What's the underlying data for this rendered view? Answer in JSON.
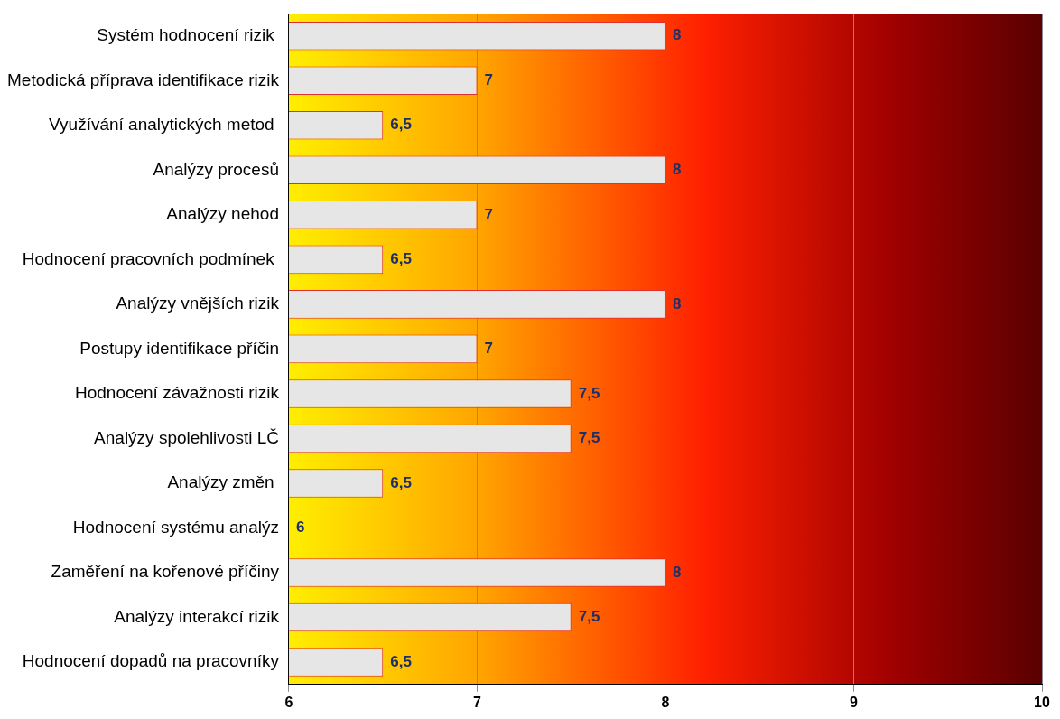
{
  "chart_data": {
    "type": "bar",
    "orientation": "horizontal",
    "categories": [
      "Systém hodnocení rizik ",
      "Metodická příprava identifikace rizik",
      "Využívání analytických metod ",
      "Analýzy procesů",
      "Analýzy nehod",
      "Hodnocení pracovních podmínek ",
      "Analýzy vnějších rizik",
      "Postupy identifikace příčin",
      "Hodnocení závažnosti rizik",
      "Analýzy spolehlivosti LČ",
      "Analýzy změn ",
      "Hodnocení systému analýz",
      "Zaměření na kořenové příčiny",
      "Analýzy interakcí rizik",
      "Hodnocení dopadů na pracovníky"
    ],
    "values": [
      8,
      7,
      6.5,
      8,
      7,
      6.5,
      8,
      7,
      7.5,
      7.5,
      6.5,
      6,
      8,
      7.5,
      6.5
    ],
    "value_labels": [
      "8",
      "7",
      "6,5",
      "8",
      "7",
      "6,5",
      "8",
      "7",
      "7,5",
      "7,5",
      "6,5",
      "6",
      "8",
      "7,5",
      "6,5"
    ],
    "color": "#e6e6e6",
    "xlim": [
      6,
      10
    ],
    "xticks": [
      6,
      7,
      8,
      9,
      10
    ],
    "grid": "x",
    "legend": false
  }
}
